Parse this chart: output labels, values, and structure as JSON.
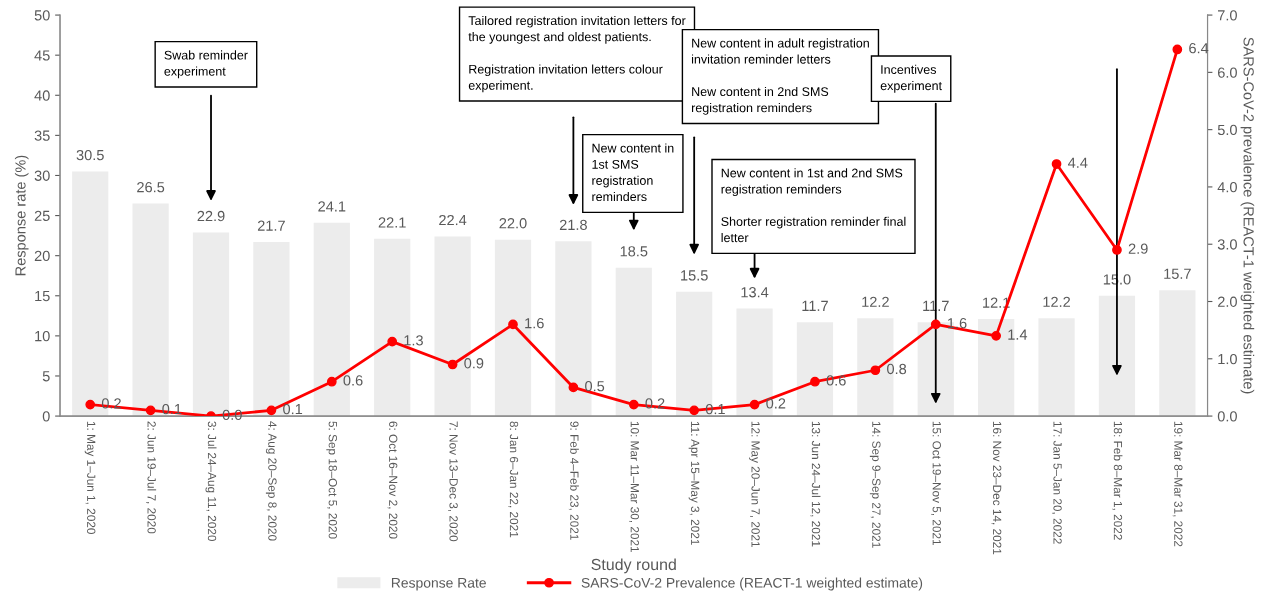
{
  "chart_data": {
    "type": "bar",
    "xlabel": "Study round",
    "ylabel": "Response rate (%)",
    "y2label": "SARS-CoV-2 prevalence (REACT-1 weighted estimate)",
    "categories": [
      "1: May 1–Jun 1, 2020",
      "2: Jun 19–Jul 7, 2020",
      "3: Jul 24–Aug 11, 2020",
      "4: Aug 20–Sep 8, 2020",
      "5: Sep 18–Oct 5, 2020",
      "6: Oct 16–Nov 2, 2020",
      "7: Nov 13–Dec 3, 2020",
      "8: Jan 6–Jan 22, 2021",
      "9: Feb 4–Feb 23, 2021",
      "10: Mar 11–Mar 30, 2021",
      "11: Apr 15–May 3, 2021",
      "12: May 20–Jun 7, 2021",
      "13: Jun 24–Jul 12, 2021",
      "14: Sep 9–Sep 27, 2021",
      "15: Oct 19–Nov 5, 2021",
      "16: Nov 23–Dec 14, 2021",
      "17: Jan 5–Jan 20, 2022",
      "18: Feb 8–Mar 1, 2022",
      "19: Mar 8–Mar 31, 2022"
    ],
    "series": [
      {
        "name": "Response Rate",
        "color": "#ececec",
        "values": [
          30.5,
          26.5,
          22.9,
          21.7,
          24.1,
          22.1,
          22.4,
          22.0,
          21.8,
          18.5,
          15.5,
          13.4,
          11.7,
          12.2,
          11.7,
          12.1,
          12.2,
          15.0,
          15.7
        ],
        "value_labels": [
          "30.5",
          "26.5",
          "22.9",
          "21.7",
          "24.1",
          "22.1",
          "22.4",
          "22.0",
          "21.8",
          "18.5",
          "15.5",
          "13.4",
          "11.7",
          "12.2",
          "11.7",
          "12.1",
          "12.2",
          "15.0",
          "15.7"
        ]
      },
      {
        "name": "SARS-CoV-2 Prevalence (REACT-1 weighted estimate)",
        "type": "line",
        "axis": "y2",
        "color": "#ff0000",
        "marker": "circle",
        "line_style": "solid",
        "values": [
          0.2,
          0.1,
          0.0,
          0.1,
          0.6,
          1.3,
          0.9,
          1.6,
          0.5,
          0.2,
          0.1,
          0.2,
          0.6,
          0.8,
          1.6,
          1.4,
          4.4,
          2.9,
          6.4
        ],
        "value_labels": [
          "0.2",
          "0.1",
          "0.0",
          "0.1",
          "0.6",
          "1.3",
          "0.9",
          "1.6",
          "0.5",
          "0.2",
          "0.1",
          "0.2",
          "0.6",
          "0.8",
          "1.6",
          "1.4",
          "4.4",
          "2.9",
          "6.4"
        ]
      }
    ],
    "ylim": [
      0,
      50
    ],
    "yticks": [
      0,
      5,
      10,
      15,
      20,
      25,
      30,
      35,
      40,
      45,
      50
    ],
    "y2lim": [
      0,
      7
    ],
    "y2ticks": [
      {
        "value": 0,
        "label": "0.0"
      },
      {
        "value": 1,
        "label": "1.0"
      },
      {
        "value": 2,
        "label": "2.0"
      },
      {
        "value": 3,
        "label": "3.0"
      },
      {
        "value": 4,
        "label": "4.0"
      },
      {
        "value": 5,
        "label": "5.0"
      },
      {
        "value": 6,
        "label": "6.0"
      },
      {
        "value": 7,
        "label": "7.0"
      }
    ],
    "grid": false,
    "legend": "bottom",
    "annotations": [
      "Swab reminder\nexperiment",
      "Tailored registration invitation letters for\nthe youngest and oldest patients.\n\nRegistration invitation letters colour\nexperiment.",
      "New content in\n1st SMS\nregistration\nreminders",
      "New content in adult registration\ninvitation reminder letters\n\nNew content in 2nd SMS\nregistration reminders",
      "New content in 1st and 2nd SMS\nregistration reminders\n\nShorter registration reminder final\nletter",
      "Incentives\nexperiment"
    ]
  }
}
